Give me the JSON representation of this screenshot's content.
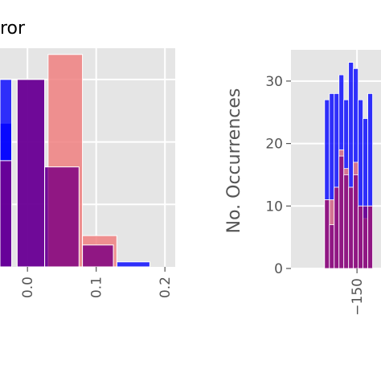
{
  "chart_data": [
    {
      "type": "bar",
      "title": "ror",
      "xlabel": "",
      "ylabel": "",
      "xlim": [
        -0.04,
        0.215
      ],
      "ylim": [
        0,
        35
      ],
      "x_ticks": [
        0.0,
        0.1,
        0.2
      ],
      "x_tick_labels": [
        "0.0",
        "0.1",
        "0.2"
      ],
      "grid": true,
      "series": [
        {
          "color": "#0000ff",
          "bars": [
            {
              "x0": -0.04,
              "x1": -0.023,
              "value": 23
            },
            {
              "x0": -0.04,
              "x1": -0.023,
              "value": 30
            },
            {
              "x0": -0.015,
              "x1": 0.025,
              "value": 30
            },
            {
              "x0": 0.025,
              "x1": 0.075,
              "value": 16
            },
            {
              "x0": 0.08,
              "x1": 0.125,
              "value": 3.5
            },
            {
              "x0": 0.13,
              "x1": 0.178,
              "value": 0.8
            }
          ]
        },
        {
          "color": "#f08080",
          "bars": [
            {
              "x0": 0.03,
              "x1": 0.08,
              "value": 34
            },
            {
              "x0": 0.08,
              "x1": 0.13,
              "value": 5
            }
          ]
        },
        {
          "color": "#800080",
          "bars": [
            {
              "x0": -0.04,
              "x1": -0.023,
              "value": 17
            },
            {
              "x0": -0.015,
              "x1": 0.025,
              "value": 30
            },
            {
              "x0": 0.025,
              "x1": 0.075,
              "value": 16
            },
            {
              "x0": 0.08,
              "x1": 0.125,
              "value": 3.5
            }
          ]
        }
      ]
    },
    {
      "type": "bar",
      "title": "",
      "xlabel": "",
      "ylabel": "No. Occurrences",
      "xlim": [
        -205,
        -130
      ],
      "ylim": [
        0,
        35
      ],
      "x_ticks": [
        -150
      ],
      "x_tick_labels": [
        "−150"
      ],
      "y_ticks": [
        0,
        10,
        20,
        30
      ],
      "y_tick_labels": [
        "0",
        "10",
        "20",
        "30"
      ],
      "grid": true,
      "categories_x": [
        -175,
        -171,
        -167,
        -163,
        -159,
        -155,
        -151,
        -147,
        -143,
        -139
      ],
      "series": [
        {
          "color": "#0000ff",
          "values": [
            27,
            28,
            28,
            31,
            27,
            33,
            32,
            27,
            24,
            28
          ]
        },
        {
          "color": "#f08080",
          "values": [
            11,
            11,
            13,
            19,
            16,
            13,
            17,
            10,
            8,
            10
          ]
        },
        {
          "color": "#800080",
          "values": [
            11,
            7,
            13,
            18,
            15,
            13,
            15,
            10,
            10,
            10
          ]
        }
      ]
    }
  ]
}
